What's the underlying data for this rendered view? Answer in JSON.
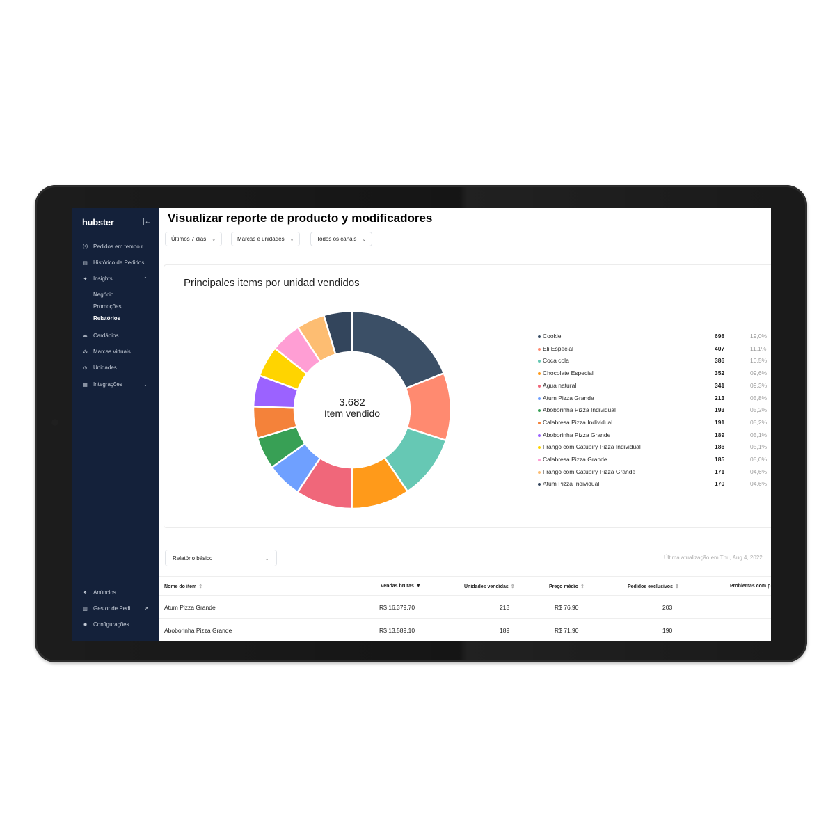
{
  "sidebar": {
    "logo": "hubster",
    "collapse_icon": "collapse-sidebar-icon",
    "items": [
      {
        "label": "Pedidos em tempo r...",
        "icon": "live-orders-icon"
      },
      {
        "label": "Histórico de Pedidos",
        "icon": "receipt-icon"
      },
      {
        "label": "Insights",
        "icon": "insights-icon"
      },
      {
        "label": "Cardápios",
        "icon": "menu-icon"
      },
      {
        "label": "Marcas virtuais",
        "icon": "brands-icon"
      },
      {
        "label": "Unidades",
        "icon": "location-icon"
      },
      {
        "label": "Integrações",
        "icon": "integrations-icon"
      }
    ],
    "insights_sub": [
      "Negócio",
      "Promoções",
      "Relatórios"
    ],
    "bottom_items": [
      {
        "label": "Anúncios",
        "icon": "bell-icon"
      },
      {
        "label": "Gestor de Pedi...",
        "icon": "order-manager-icon"
      },
      {
        "label": "Configurações",
        "icon": "gear-icon"
      }
    ]
  },
  "header": {
    "title": "Visualizar reporte de producto y modificadores",
    "filters": [
      "Últimos 7 dias",
      "Marcas e unidades",
      "Todos os canais"
    ]
  },
  "chart_card": {
    "title": "Principales items por unidad vendidos",
    "center_value": "3.682",
    "center_label": "Item vendido"
  },
  "chart_data": {
    "type": "pie",
    "title": "Principales items por unidad vendidos",
    "categories": [
      "Cookie",
      "Eli Especial",
      "Coca cola",
      "Chocolate Especial",
      "Agua natural",
      "Atum Pizza Grande",
      "Aboborinha Pizza Individual",
      "Calabresa Pizza Individual",
      "Aboborinha Pizza Grande",
      "Frango com Catupiry Pizza Individual",
      "Calabresa Pizza Grande",
      "Frango com Catupiry Pizza Grande",
      "Atum Pizza Individual"
    ],
    "values": [
      698,
      407,
      386,
      352,
      341,
      213,
      193,
      191,
      189,
      186,
      185,
      171,
      170
    ],
    "percentages": [
      "19,0%",
      "11,1%",
      "10,5%",
      "09,6%",
      "09,3%",
      "05,8%",
      "05,2%",
      "05,2%",
      "05,1%",
      "05,1%",
      "05,0%",
      "04,6%",
      "04,6%"
    ],
    "colors": [
      "#3b4f66",
      "#ff8a70",
      "#66c8b4",
      "#ff9a1a",
      "#f0677a",
      "#6fa0ff",
      "#38a055",
      "#f4823a",
      "#9b62ff",
      "#ffd400",
      "#ff9ed4",
      "#fdbd72",
      "#33455c"
    ],
    "legend_position": "right"
  },
  "report": {
    "select_value": "Relatório básico",
    "last_update": "Última atualização em Thu, Aug 4, 2022"
  },
  "table": {
    "headers": [
      "Nome do item",
      "Vendas brutas",
      "Unidades vendidas",
      "Preço médio",
      "Pedidos exclusivos",
      "Problemas com p"
    ],
    "rows": [
      [
        "Atum Pizza Grande",
        "R$ 16.379,70",
        "213",
        "R$ 76,90",
        "203"
      ],
      [
        "Aboborinha Pizza Grande",
        "R$ 13.589,10",
        "189",
        "R$ 71,90",
        "190"
      ]
    ]
  }
}
